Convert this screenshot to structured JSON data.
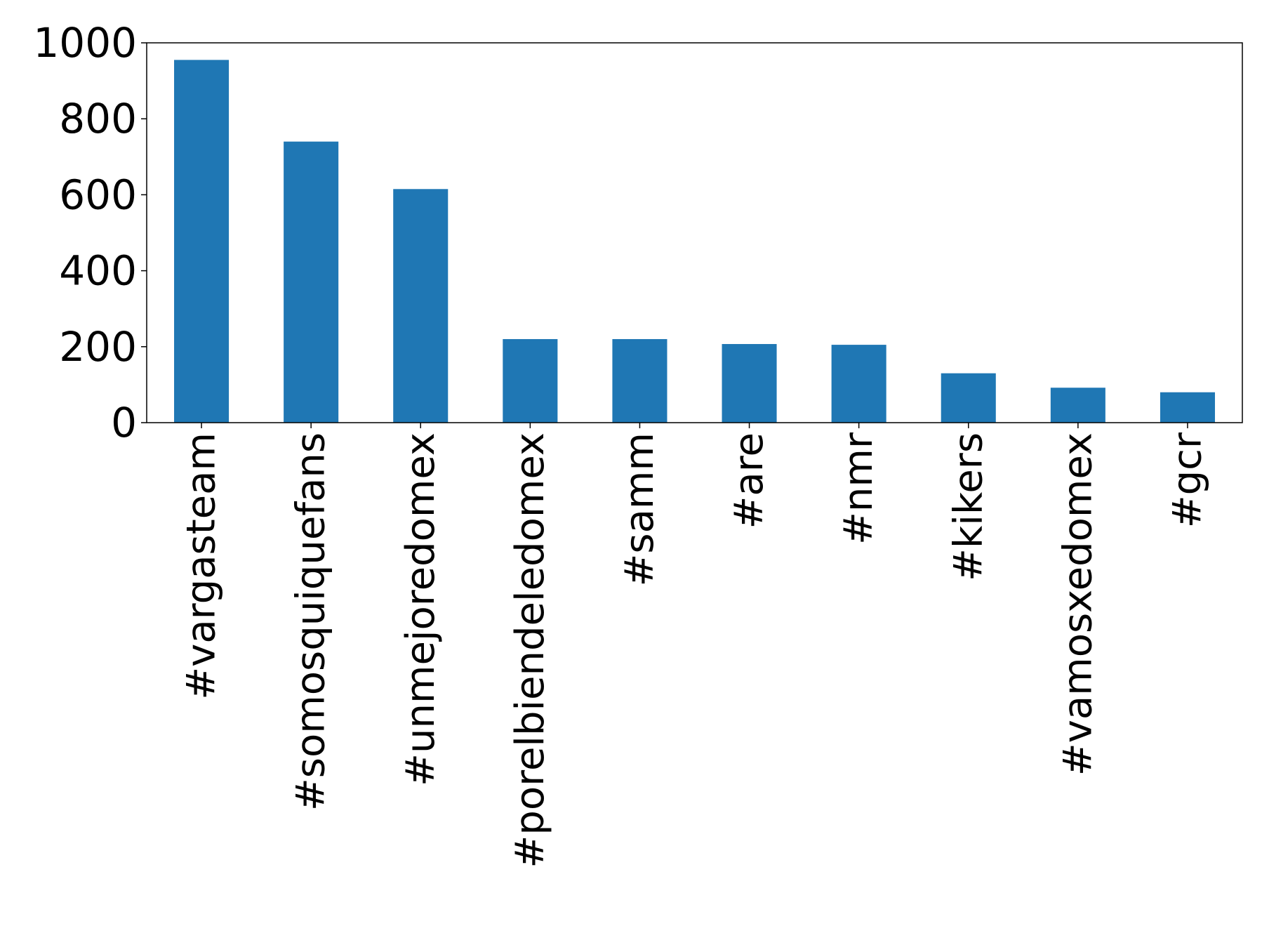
{
  "chart_data": {
    "type": "bar",
    "title": "",
    "xlabel": "",
    "ylabel": "",
    "categories": [
      "#vargasteam",
      "#somosquiquefans",
      "#unmejoredomex",
      "#porelbiendeledomex",
      "#samm",
      "#are",
      "#nmr",
      "#kikers",
      "#vamosxedomex",
      "#gcr"
    ],
    "values": [
      955,
      740,
      615,
      220,
      220,
      207,
      205,
      130,
      92,
      80
    ],
    "ylim": [
      0,
      1000
    ],
    "yticks": [
      0,
      200,
      400,
      600,
      800,
      1000
    ],
    "bar_color": "#1f77b4",
    "grid": false,
    "legend": "none"
  }
}
